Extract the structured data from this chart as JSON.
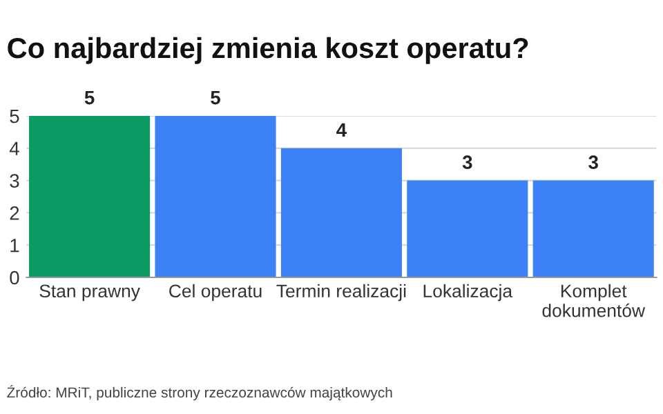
{
  "chart_data": {
    "type": "bar",
    "title": "Co najbardziej zmienia koszt operatu?",
    "categories": [
      "Stan prawny",
      "Cel operatu",
      "Termin realizacji",
      "Lokalizacja",
      "Komplet dokumentów"
    ],
    "values": [
      5,
      5,
      4,
      3,
      3
    ],
    "colors": [
      "#0a9a63",
      "#3d82f4",
      "#3d82f4",
      "#3d82f4",
      "#3d82f4"
    ],
    "ylim": [
      0,
      5
    ],
    "yticks": [
      0,
      1,
      2,
      3,
      4,
      5
    ],
    "grid": "y",
    "data_labels": true,
    "annotations": [
      "Źródło: MRiT, publiczne strony rzeczoznawców majątkowych"
    ]
  }
}
